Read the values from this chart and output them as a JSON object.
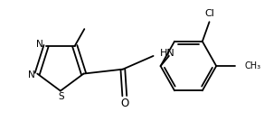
{
  "bg_color": "#ffffff",
  "line_color": "#000000",
  "lw": 1.3,
  "fs": 7.5,
  "figsize": [
    2.92,
    1.55
  ],
  "dpi": 100,
  "xlim": [
    0,
    292
  ],
  "ylim": [
    0,
    155
  ]
}
